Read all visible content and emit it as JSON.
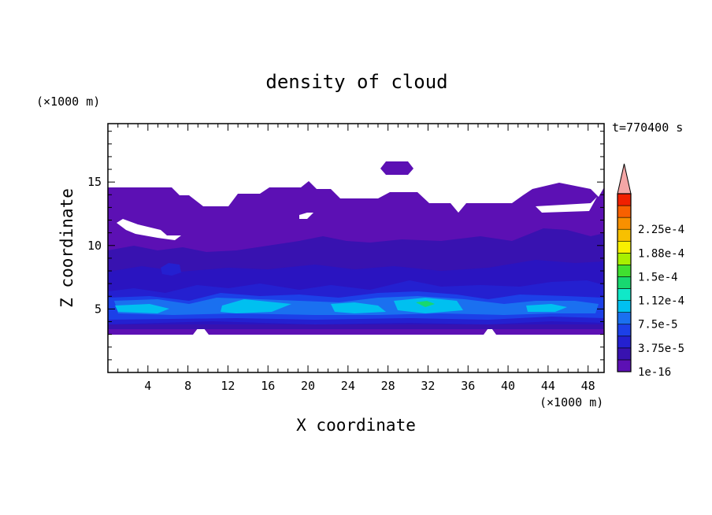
{
  "chart_data": {
    "type": "heatmap",
    "title": "density of cloud",
    "xlabel": "X coordinate",
    "ylabel": "Z coordinate",
    "x_unit": "(×1000 m)",
    "y_unit": "(×1000 m)",
    "time_label": "t=770400 s",
    "xlim": [
      0,
      49.6
    ],
    "ylim": [
      0,
      19.6
    ],
    "xticks": [
      4,
      8,
      12,
      16,
      20,
      24,
      28,
      32,
      36,
      40,
      44,
      48
    ],
    "yticks": [
      5,
      10,
      15
    ],
    "grid": false,
    "colorbar": {
      "position": "right",
      "levels": [
        "1e-16",
        "3.75e-5",
        "7.5e-5",
        "1.12e-4",
        "1.5e-4",
        "1.88e-4",
        "2.25e-4"
      ],
      "colors": [
        "#5c10b4",
        "#3812b0",
        "#2420d0",
        "#1c40e8",
        "#1a70f0",
        "#00c0f0",
        "#10e8c8",
        "#18d870",
        "#40e030",
        "#a8f000",
        "#f8f000",
        "#f8c000",
        "#f89000",
        "#f86000",
        "#f02000"
      ],
      "over_color": "#f4a6a6"
    },
    "regions": [
      {
        "level": 0,
        "z_range": [
          3.2,
          14.7
        ],
        "description": "cloud layer"
      },
      {
        "level": 1,
        "z_range": [
          3.6,
          10.2
        ]
      },
      {
        "level": 2,
        "z_range": [
          4.0,
          7.0
        ]
      },
      {
        "level": 3,
        "z_range": [
          4.3,
          6.2
        ]
      },
      {
        "level": 4,
        "z_range": [
          4.6,
          5.8
        ]
      },
      {
        "level": 5,
        "z_range": [
          4.8,
          5.5
        ]
      },
      {
        "level": 6,
        "x_range": [
          30.5,
          32.5
        ],
        "z_range": [
          5.2,
          5.8
        ]
      }
    ]
  }
}
